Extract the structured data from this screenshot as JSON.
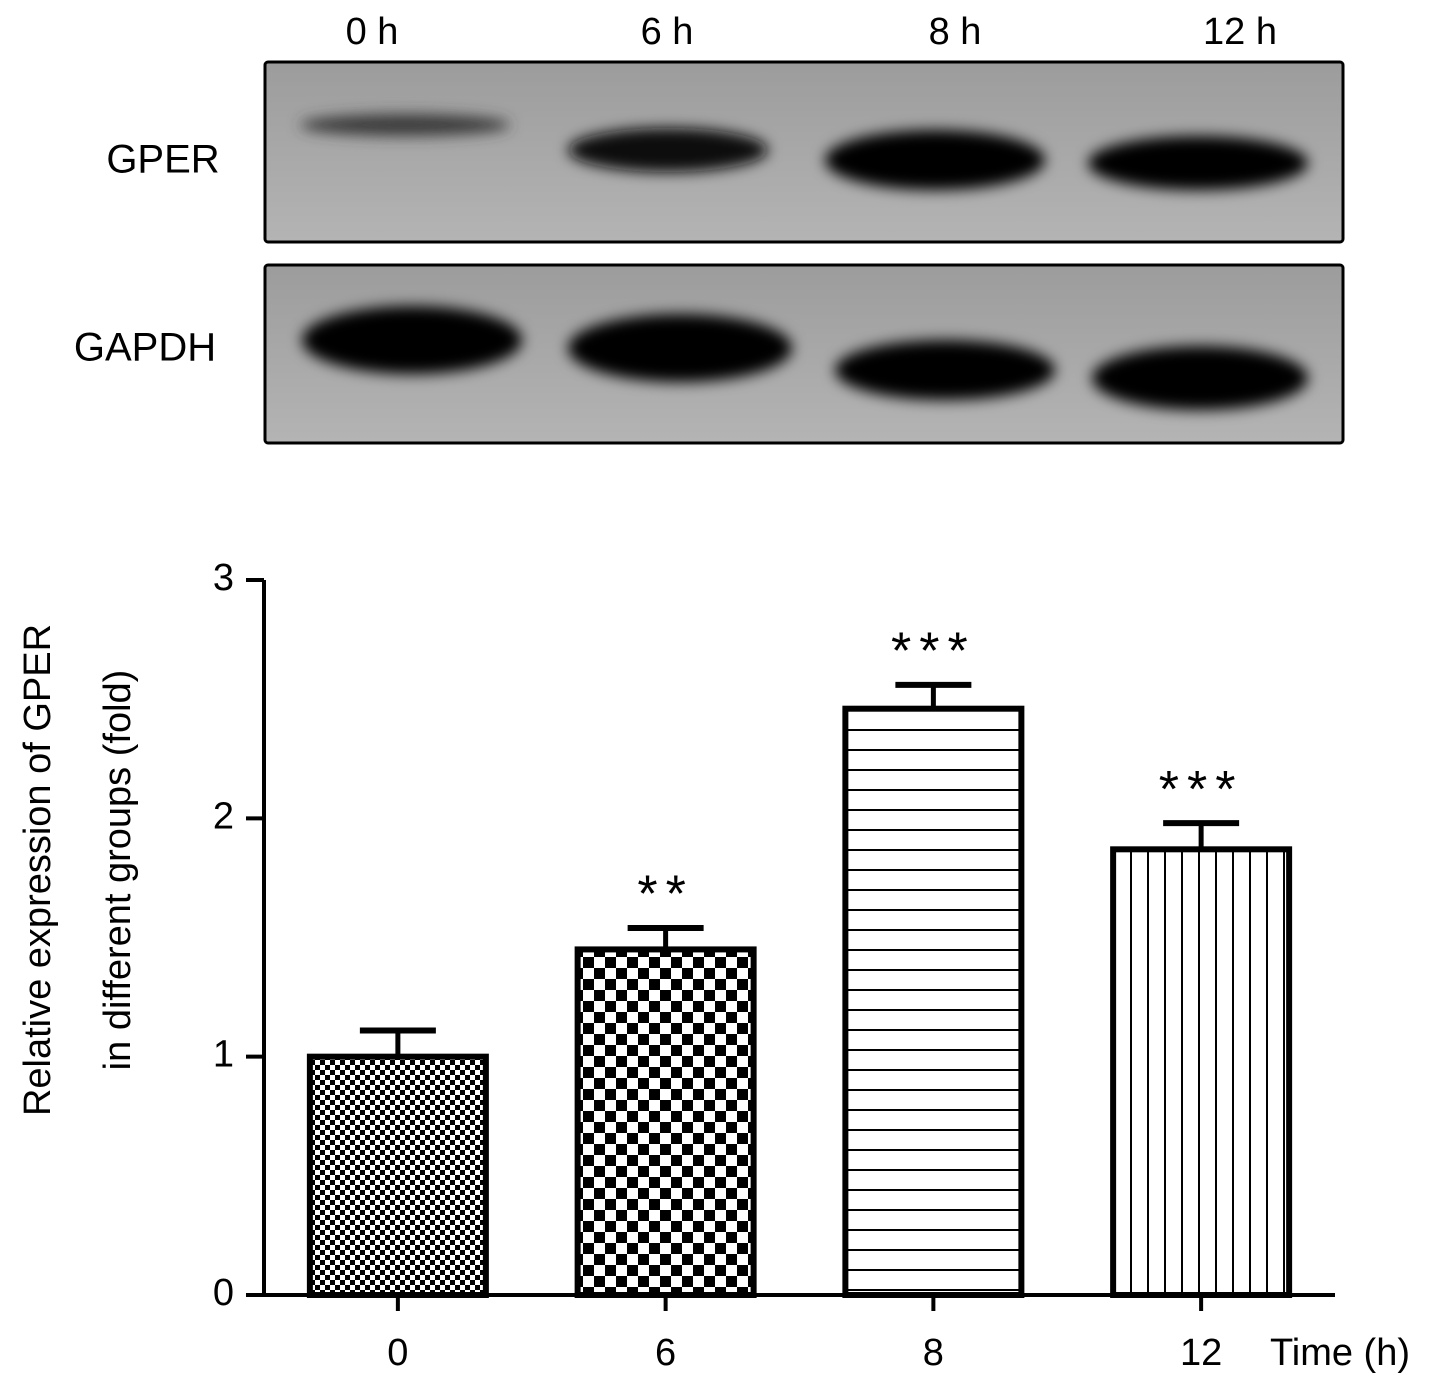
{
  "blot": {
    "lanes": [
      "0 h",
      "6 h",
      "8 h",
      "12 h"
    ],
    "rows": [
      "GPER",
      "GAPDH"
    ]
  },
  "chart_data": {
    "type": "bar",
    "ylabel": [
      "Relative expression of GPER",
      "in different groups (fold)"
    ],
    "xlabel": "Time (h)",
    "categories": [
      "0",
      "6",
      "8",
      "12"
    ],
    "values": [
      1.0,
      1.45,
      2.46,
      1.87
    ],
    "errors": [
      0.11,
      0.09,
      0.1,
      0.11
    ],
    "significance": [
      null,
      "**",
      "***",
      "***"
    ],
    "color": "#000000",
    "ylim": [
      0,
      3
    ],
    "yticks": [
      0,
      1,
      2,
      3
    ],
    "grid": false
  }
}
